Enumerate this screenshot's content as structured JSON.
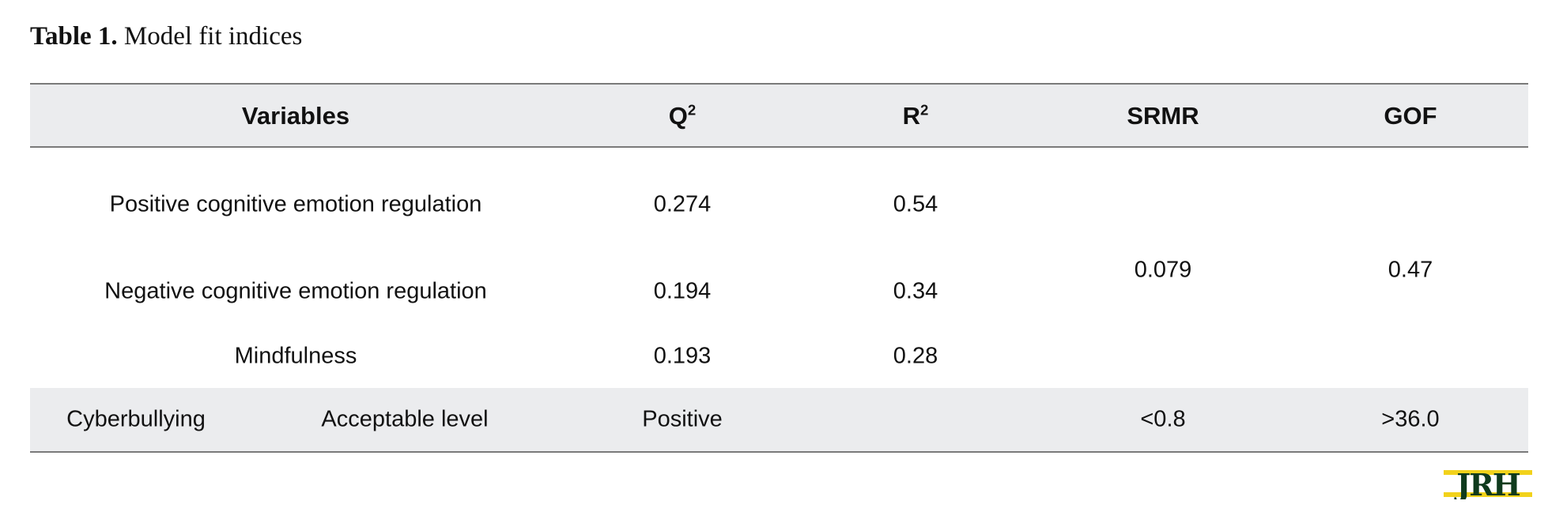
{
  "caption": {
    "label": "Table 1.",
    "title": "Model fit indices"
  },
  "header": {
    "variables": "Variables",
    "q2_base": "Q",
    "q2_sup": "2",
    "r2_base": "R",
    "r2_sup": "2",
    "srmr": "SRMR",
    "gof": "GOF"
  },
  "rows": [
    {
      "variable": "Positive cognitive emotion regulation",
      "q2": "0.274",
      "r2": "0.54"
    },
    {
      "variable": "Negative cognitive emotion regulation",
      "q2": "0.194",
      "r2": "0.34"
    },
    {
      "variable": "Mindfulness",
      "q2": "0.193",
      "r2": "0.28"
    }
  ],
  "merged": {
    "srmr": "0.079",
    "gof": "0.47"
  },
  "footer": {
    "col1": "Cyberbullying",
    "col2": "Acceptable level",
    "q2": "Positive",
    "r2": "",
    "srmr": "<0.8",
    "gof": ">36.0"
  },
  "logo": {
    "text": "JRH",
    "fill": "#0f3b1d",
    "accent": "#f2d21b"
  }
}
